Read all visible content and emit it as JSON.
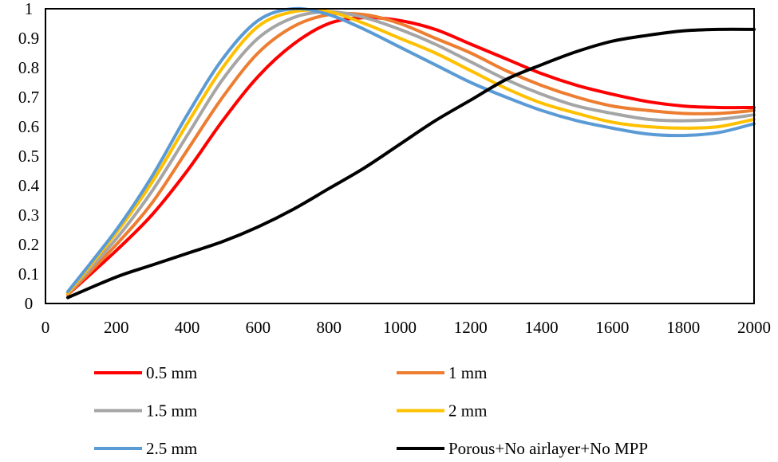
{
  "chart_data": {
    "type": "line",
    "title": "",
    "xlabel": "",
    "ylabel": "",
    "xlim": [
      0,
      2000
    ],
    "ylim": [
      0,
      1
    ],
    "xticks": [
      "0",
      "200",
      "400",
      "600",
      "800",
      "1000",
      "1200",
      "1400",
      "1600",
      "1800",
      "2000"
    ],
    "yticks": [
      "0",
      "0.1",
      "0.2",
      "0.3",
      "0.4",
      "0.5",
      "0.6",
      "0.7",
      "0.8",
      "0.9",
      "1"
    ],
    "grid": false,
    "legend_position": "bottom",
    "x": [
      63,
      200,
      300,
      400,
      500,
      600,
      700,
      800,
      900,
      1000,
      1100,
      1200,
      1300,
      1400,
      1500,
      1600,
      1700,
      1800,
      1900,
      2000
    ],
    "series": [
      {
        "name": "0.5 mm",
        "color": "#ff0000",
        "values": [
          0.03,
          0.18,
          0.3,
          0.45,
          0.62,
          0.77,
          0.88,
          0.95,
          0.97,
          0.96,
          0.93,
          0.88,
          0.83,
          0.78,
          0.74,
          0.71,
          0.685,
          0.67,
          0.665,
          0.665
        ]
      },
      {
        "name": "1 mm",
        "color": "#ed7d31",
        "values": [
          0.03,
          0.2,
          0.34,
          0.52,
          0.7,
          0.85,
          0.94,
          0.98,
          0.98,
          0.95,
          0.9,
          0.85,
          0.79,
          0.74,
          0.7,
          0.67,
          0.655,
          0.645,
          0.645,
          0.655
        ]
      },
      {
        "name": "1.5 mm",
        "color": "#a5a5a5",
        "values": [
          0.035,
          0.22,
          0.38,
          0.57,
          0.76,
          0.9,
          0.97,
          0.99,
          0.97,
          0.93,
          0.88,
          0.82,
          0.76,
          0.71,
          0.67,
          0.645,
          0.625,
          0.62,
          0.625,
          0.64
        ]
      },
      {
        "name": "2 mm",
        "color": "#ffc000",
        "values": [
          0.035,
          0.24,
          0.41,
          0.61,
          0.8,
          0.94,
          0.99,
          0.99,
          0.95,
          0.9,
          0.85,
          0.79,
          0.73,
          0.68,
          0.645,
          0.615,
          0.6,
          0.595,
          0.6,
          0.625
        ]
      },
      {
        "name": "2.5 mm",
        "color": "#5b9bd5",
        "values": [
          0.04,
          0.25,
          0.43,
          0.64,
          0.83,
          0.96,
          1.0,
          0.98,
          0.93,
          0.87,
          0.81,
          0.75,
          0.7,
          0.655,
          0.62,
          0.595,
          0.575,
          0.57,
          0.58,
          0.61
        ]
      },
      {
        "name": "Porous+No airlayer+No MPP",
        "color": "#000000",
        "values": [
          0.02,
          0.09,
          0.13,
          0.17,
          0.21,
          0.26,
          0.32,
          0.39,
          0.46,
          0.54,
          0.62,
          0.69,
          0.76,
          0.81,
          0.855,
          0.89,
          0.91,
          0.925,
          0.93,
          0.93
        ]
      }
    ]
  }
}
